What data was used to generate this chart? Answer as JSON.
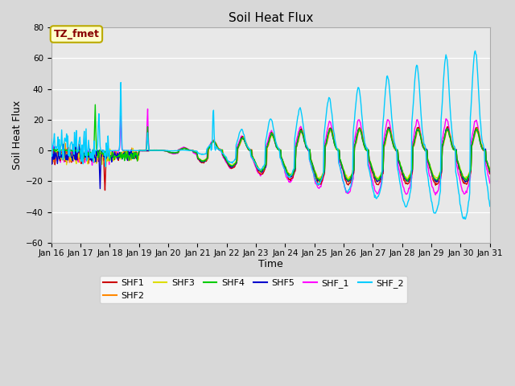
{
  "title": "Soil Heat Flux",
  "xlabel": "Time",
  "ylabel": "Soil Heat Flux",
  "xlim": [
    0,
    360
  ],
  "ylim": [
    -60,
    80
  ],
  "yticks": [
    -60,
    -40,
    -20,
    0,
    20,
    40,
    60,
    80
  ],
  "xtick_labels": [
    "Jan 16",
    "Jan 17",
    "Jan 18",
    "Jan 19",
    "Jan 20",
    "Jan 21",
    "Jan 22",
    "Jan 23",
    "Jan 24",
    "Jan 25",
    "Jan 26",
    "Jan 27",
    "Jan 28",
    "Jan 29",
    "Jan 30",
    "Jan 31"
  ],
  "series_colors": {
    "SHF1": "#cc0000",
    "SHF2": "#ff8800",
    "SHF3": "#dddd00",
    "SHF4": "#00cc00",
    "SHF5": "#0000cc",
    "SHF_1": "#ff00ff",
    "SHF_2": "#00ccff"
  },
  "legend_label": "TZ_fmet",
  "legend_box_color": "#ffffcc",
  "legend_box_edge": "#bbaa00",
  "legend_text_color": "#880000",
  "plot_bg": "#e8e8e8",
  "fig_bg": "#d8d8d8",
  "title_fontsize": 11,
  "axis_label_fontsize": 9,
  "tick_fontsize": 7.5,
  "linewidth": 1.0
}
